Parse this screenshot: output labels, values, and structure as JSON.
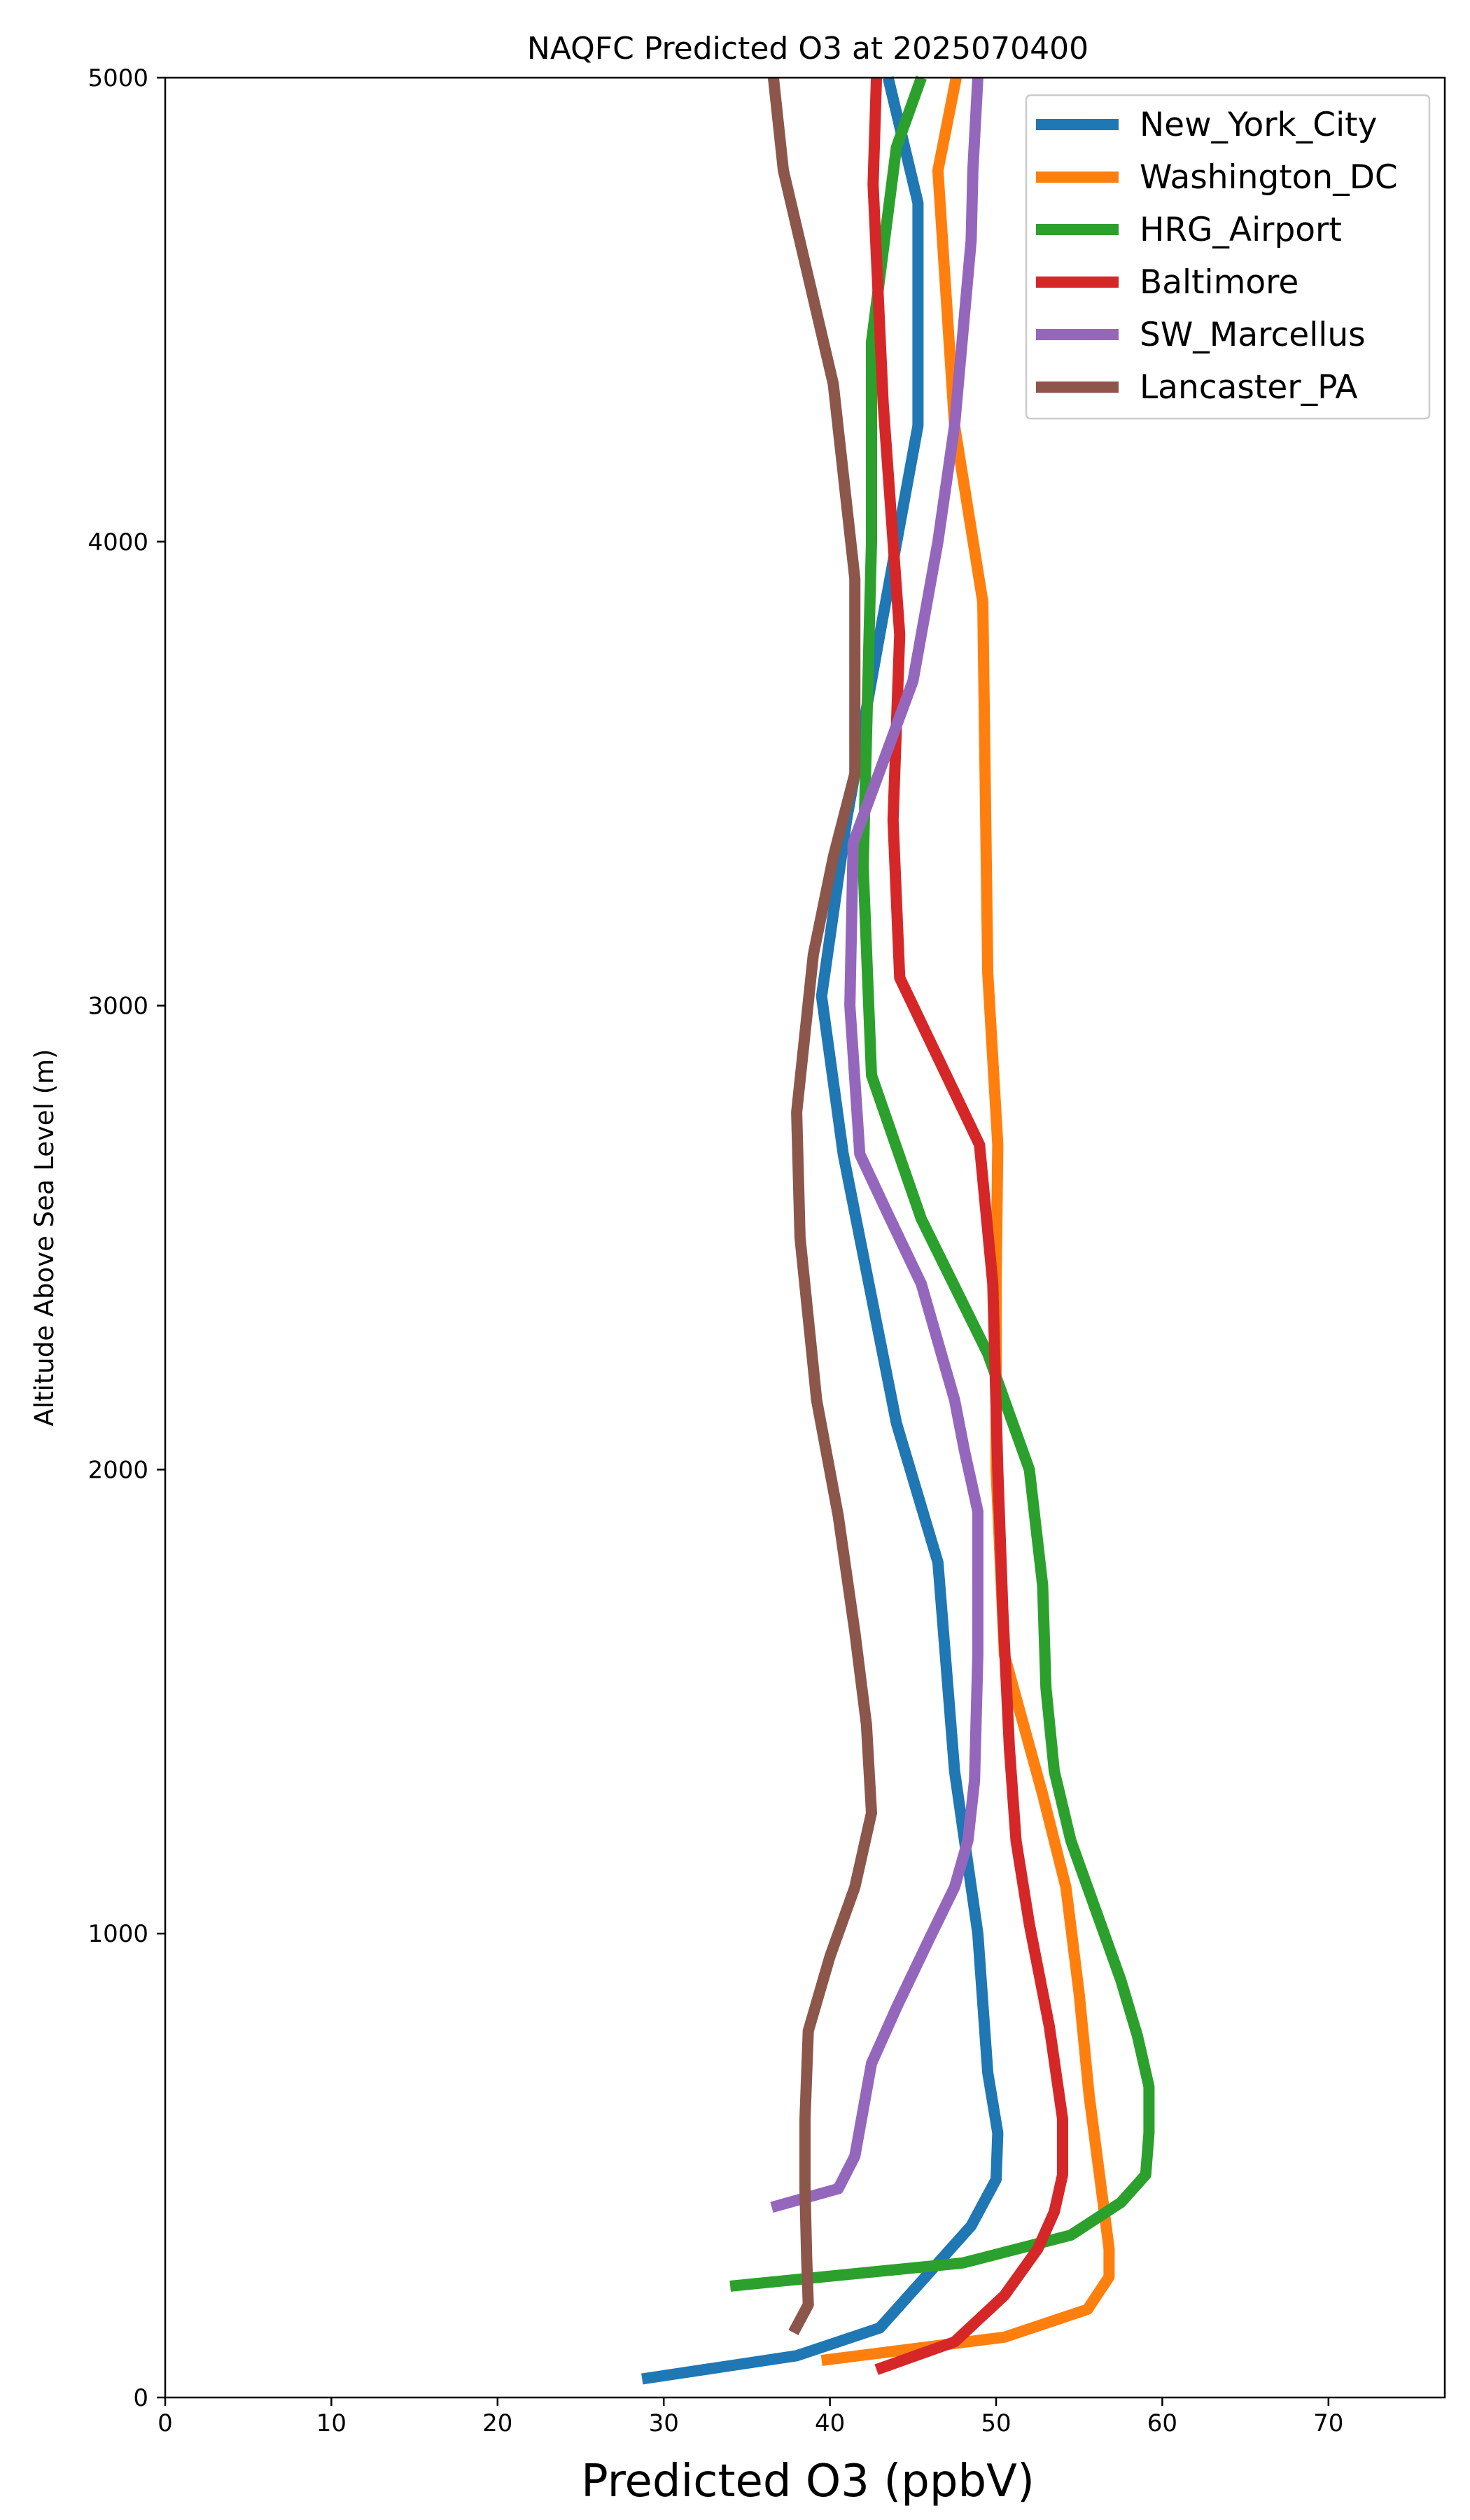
{
  "chart_data": {
    "type": "line",
    "title": "NAQFC Predicted O3 at 2025070400",
    "xlabel": "Predicted O3 (ppbV)",
    "ylabel": "Altitude Above Sea Level (m)",
    "xlim": [
      0,
      77
    ],
    "ylim": [
      0,
      5000
    ],
    "xticks": [
      0,
      10,
      20,
      30,
      40,
      50,
      60,
      70
    ],
    "yticks": [
      0,
      1000,
      2000,
      3000,
      4000,
      5000
    ],
    "grid": false,
    "legend_position": "upper right",
    "series": [
      {
        "name": "New_York_City",
        "color": "#1f77b4",
        "points": [
          [
            28.7,
            40
          ],
          [
            38,
            90
          ],
          [
            43,
            150
          ],
          [
            46,
            270
          ],
          [
            48.5,
            370
          ],
          [
            50,
            470
          ],
          [
            50.1,
            570
          ],
          [
            49.5,
            700
          ],
          [
            48.9,
            1000
          ],
          [
            47.5,
            1350
          ],
          [
            46.5,
            1800
          ],
          [
            44,
            2100
          ],
          [
            40.8,
            2680
          ],
          [
            39.5,
            3020
          ],
          [
            41,
            3400
          ],
          [
            43,
            3800
          ],
          [
            45.3,
            4250
          ],
          [
            45.3,
            4730
          ],
          [
            43.5,
            5000
          ]
        ]
      },
      {
        "name": "Washington_DC",
        "color": "#ff7f0e",
        "points": [
          [
            39.5,
            80
          ],
          [
            50.5,
            130
          ],
          [
            55.5,
            190
          ],
          [
            56.8,
            260
          ],
          [
            56.8,
            320
          ],
          [
            56.4,
            430
          ],
          [
            55.6,
            650
          ],
          [
            55,
            870
          ],
          [
            54.2,
            1100
          ],
          [
            52.8,
            1300
          ],
          [
            50.5,
            1600
          ],
          [
            50,
            2000
          ],
          [
            50,
            2400
          ],
          [
            50.1,
            2700
          ],
          [
            49.5,
            3070
          ],
          [
            49.2,
            3870
          ],
          [
            47.5,
            4250
          ],
          [
            46.5,
            4800
          ],
          [
            47.6,
            5000
          ]
        ]
      },
      {
        "name": "HRG_Airport",
        "color": "#2ca02c",
        "points": [
          [
            34,
            240
          ],
          [
            48,
            290
          ],
          [
            54.5,
            350
          ],
          [
            57.5,
            420
          ],
          [
            59,
            480
          ],
          [
            59.2,
            570
          ],
          [
            59.2,
            670
          ],
          [
            58.5,
            780
          ],
          [
            57.5,
            900
          ],
          [
            56,
            1050
          ],
          [
            54.5,
            1200
          ],
          [
            53.5,
            1350
          ],
          [
            53,
            1530
          ],
          [
            52.8,
            1750
          ],
          [
            52,
            2000
          ],
          [
            49.5,
            2250
          ],
          [
            45.5,
            2540
          ],
          [
            42.5,
            2850
          ],
          [
            42,
            3300
          ],
          [
            42.5,
            4000
          ],
          [
            42.5,
            4430
          ],
          [
            44,
            4850
          ],
          [
            45.5,
            5000
          ]
        ]
      },
      {
        "name": "Baltimore",
        "color": "#d62728",
        "points": [
          [
            42.8,
            60
          ],
          [
            47.5,
            120
          ],
          [
            50.5,
            220
          ],
          [
            52.5,
            320
          ],
          [
            53.5,
            400
          ],
          [
            54,
            480
          ],
          [
            54,
            600
          ],
          [
            53.2,
            800
          ],
          [
            52,
            1020
          ],
          [
            51.2,
            1200
          ],
          [
            50.8,
            1400
          ],
          [
            50.4,
            1700
          ],
          [
            50.1,
            2000
          ],
          [
            49.8,
            2400
          ],
          [
            49,
            2700
          ],
          [
            44.2,
            3060
          ],
          [
            43.8,
            3400
          ],
          [
            44.2,
            3800
          ],
          [
            43.2,
            4300
          ],
          [
            42.6,
            4770
          ],
          [
            42.8,
            5000
          ]
        ]
      },
      {
        "name": "SW_Marcellus",
        "color": "#9467bd",
        "points": [
          [
            36.5,
            410
          ],
          [
            40.5,
            450
          ],
          [
            41.5,
            520
          ],
          [
            42.5,
            720
          ],
          [
            44,
            840
          ],
          [
            46,
            990
          ],
          [
            47.5,
            1100
          ],
          [
            48.3,
            1200
          ],
          [
            48.7,
            1330
          ],
          [
            48.9,
            1600
          ],
          [
            48.9,
            1910
          ],
          [
            48.1,
            2040
          ],
          [
            47.5,
            2150
          ],
          [
            45.5,
            2400
          ],
          [
            43.5,
            2550
          ],
          [
            41.8,
            2680
          ],
          [
            41.2,
            3000
          ],
          [
            41.4,
            3350
          ],
          [
            45,
            3700
          ],
          [
            46.5,
            4000
          ],
          [
            47.5,
            4250
          ],
          [
            48.5,
            4650
          ],
          [
            48.6,
            4800
          ],
          [
            48.9,
            5000
          ]
        ]
      },
      {
        "name": "Lancaster_PA",
        "color": "#8c564b",
        "points": [
          [
            37.8,
            140
          ],
          [
            38.7,
            200
          ],
          [
            38.6,
            300
          ],
          [
            38.5,
            450
          ],
          [
            38.5,
            600
          ],
          [
            38.7,
            790
          ],
          [
            40,
            950
          ],
          [
            41.5,
            1100
          ],
          [
            42.5,
            1260
          ],
          [
            42.2,
            1450
          ],
          [
            41.5,
            1650
          ],
          [
            40.5,
            1900
          ],
          [
            39.2,
            2150
          ],
          [
            38.2,
            2500
          ],
          [
            38,
            2770
          ],
          [
            39,
            3110
          ],
          [
            40.2,
            3320
          ],
          [
            41.5,
            3500
          ],
          [
            41.5,
            3920
          ],
          [
            40.2,
            4340
          ],
          [
            37.2,
            4800
          ],
          [
            36.6,
            5000
          ]
        ]
      }
    ]
  }
}
